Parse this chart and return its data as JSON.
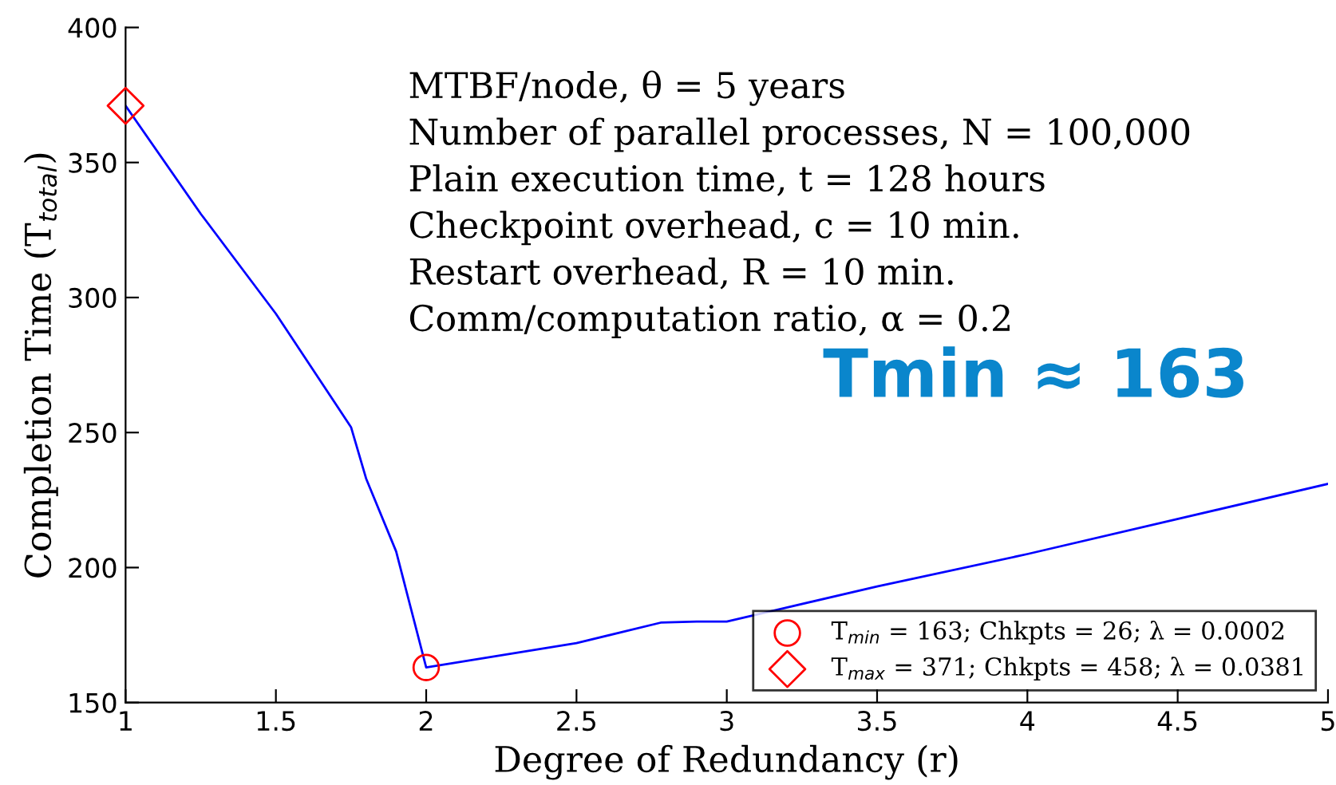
{
  "chart_data": {
    "type": "line",
    "xlabel": "Degree of Redundancy (r)",
    "ylabel": "Completion Time (T$_{total}$)",
    "xlim": [
      1,
      5
    ],
    "ylim": [
      150,
      400
    ],
    "xticks": [
      1,
      1.5,
      2,
      2.5,
      3,
      3.5,
      4,
      4.5,
      5
    ],
    "yticks": [
      150,
      200,
      250,
      300,
      350,
      400
    ],
    "grid": false,
    "legend": "bottom right",
    "series": [
      {
        "color": "#0000ff",
        "marker": "none",
        "x": [
          1,
          1.25,
          1.5,
          1.75,
          1.8,
          1.9,
          2,
          2.5,
          2.78,
          2.9,
          3,
          3.5,
          4,
          5
        ],
        "values": [
          371,
          331,
          294,
          252,
          233,
          206,
          163,
          172,
          179.6,
          180,
          180,
          193,
          205,
          231
        ]
      },
      {
        "type": "scatter",
        "name": "T$_{min}$ = 163; Chkpts = 26; λ = 0.0002",
        "color": "#ff0000",
        "marker": "circle",
        "x": [
          2
        ],
        "values": [
          163
        ]
      },
      {
        "type": "scatter",
        "name": "T$_{max}$ = 371; Chkpts = 458; λ = 0.0381",
        "color": "#ff0000",
        "marker": "diamond",
        "x": [
          1
        ],
        "values": [
          371
        ]
      }
    ],
    "annotations": [
      "MTBF/node, θ = 5 years",
      "Number of parallel processes, N = 100,000",
      "Plain execution time, t = 128 hours",
      "Checkpoint overhead, c = 10 min.",
      "Restart overhead, R = 10 min.",
      "Comm/computation ratio, α = 0.2",
      "Tmin ≈ 163"
    ]
  }
}
